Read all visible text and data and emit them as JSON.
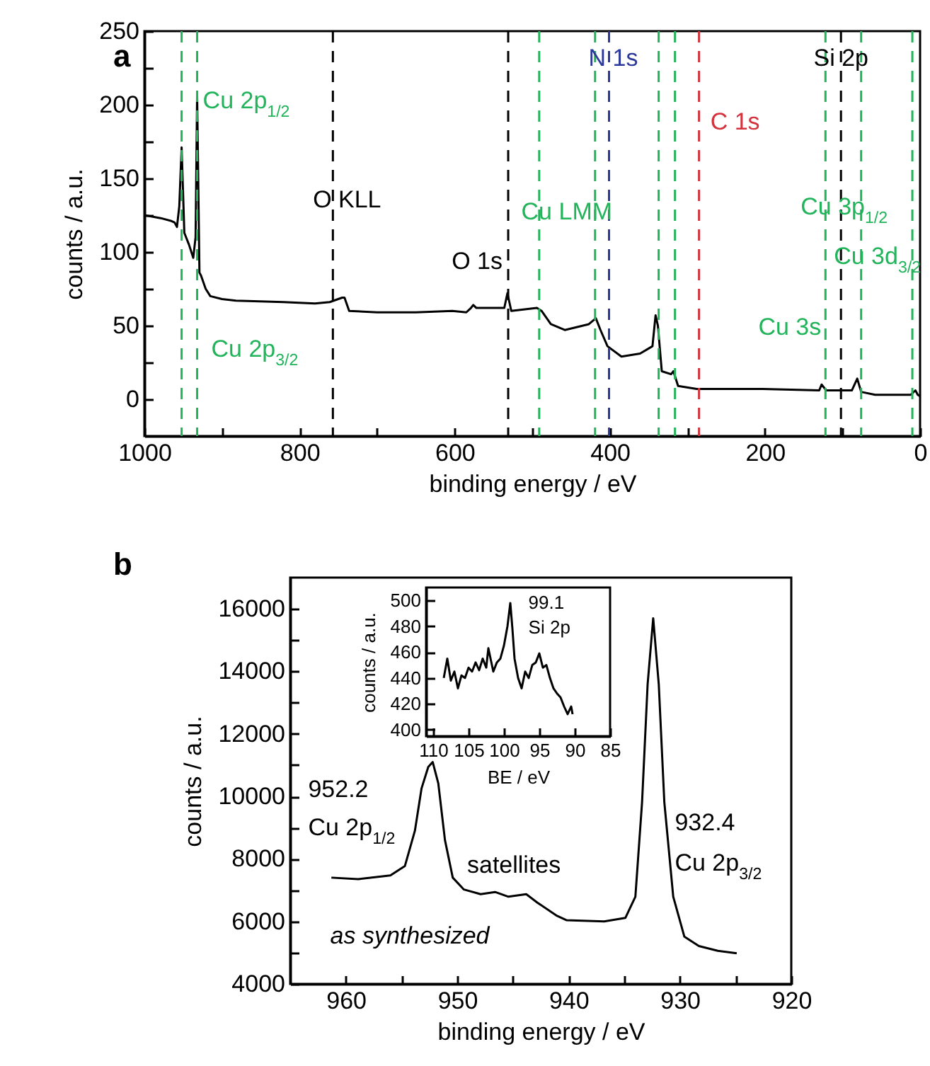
{
  "chart_data": [
    {
      "type": "line",
      "title": "a",
      "xlabel": "binding energy / eV",
      "ylabel": "counts / a.u.",
      "x": [
        1000,
        990,
        979,
        965,
        961,
        958,
        955,
        952,
        948.5,
        942.5,
        937,
        934,
        932,
        929,
        927,
        921,
        915,
        900,
        882,
        821,
        780,
        761,
        745,
        742,
        736,
        700,
        650,
        603,
        585,
        579,
        576,
        572,
        536,
        532,
        527,
        494,
        488,
        476,
        458,
        427,
        418,
        412,
        403,
        385,
        361,
        345,
        341,
        338,
        333,
        321,
        318,
        312,
        288,
        239,
        203,
        130,
        127,
        121,
        88,
        81,
        76,
        58,
        12,
        6,
        3,
        0
      ],
      "series": [
        {
          "color": "#000000",
          "values": [
            125,
            124,
            123,
            121,
            120,
            117,
            131,
            171,
            113,
            105,
            96,
            110,
            206,
            86,
            84,
            75,
            70,
            68,
            67,
            66,
            65,
            66,
            69,
            69,
            60,
            59,
            59,
            60,
            59,
            62,
            64,
            62,
            62,
            72,
            60,
            62,
            60,
            51,
            47,
            51,
            55,
            47,
            36,
            29,
            31,
            36,
            57,
            50,
            19,
            17,
            19,
            9,
            7,
            7,
            7,
            6,
            10,
            6,
            6,
            14,
            5,
            3,
            3,
            6,
            3,
            2
          ]
        }
      ],
      "xlim": [
        1000,
        0
      ],
      "ylim": [
        -25,
        250
      ],
      "xticks": [
        1000,
        {
          "value": 900,
          "label": null
        },
        800,
        {
          "value": 700,
          "label": null
        },
        600,
        {
          "value": 500,
          "label": null
        },
        400,
        {
          "value": 300,
          "label": null
        },
        200,
        {
          "value": 100,
          "label": null
        },
        0
      ],
      "yticks": [
        0,
        {
          "value": 25,
          "label": null
        },
        50,
        {
          "value": 75,
          "label": null
        },
        100,
        {
          "value": 125,
          "label": null
        },
        150,
        {
          "value": 175,
          "label": null
        },
        200,
        {
          "value": 225,
          "label": null
        },
        250
      ],
      "ref_lines": [
        {
          "axis": "x",
          "value": 952,
          "label": "Cu 2p$_{1/2}$",
          "color": "#22b45a",
          "line_style": "dashed"
        },
        {
          "axis": "x",
          "value": 932,
          "label": "Cu 2p$_{3/2}$",
          "color": "#22b45a",
          "line_style": "dashed"
        },
        {
          "axis": "x",
          "value": 757,
          "label": "O KLL",
          "color": "#000000",
          "line_style": "dashed"
        },
        {
          "axis": "x",
          "value": 531,
          "label": "O 1s",
          "color": "#000000",
          "line_style": "dashed"
        },
        {
          "axis": "x",
          "value": 491,
          "color": "#22b45a",
          "line_style": "dashed"
        },
        {
          "axis": "x",
          "value": 419,
          "label": "Cu LMM",
          "color": "#22b45a",
          "line_style": "dashed"
        },
        {
          "axis": "x",
          "value": 401,
          "label": "N 1s",
          "color": "#2b3a9a",
          "line_style": "dashed"
        },
        {
          "axis": "x",
          "value": 337,
          "color": "#22b45a",
          "line_style": "dashed"
        },
        {
          "axis": "x",
          "value": 316,
          "color": "#22b45a",
          "line_style": "dashed"
        },
        {
          "axis": "x",
          "value": 285,
          "label": "C 1s",
          "color": "#d4323c",
          "line_style": "dashed"
        },
        {
          "axis": "x",
          "value": 122,
          "label": "Cu 3s",
          "color": "#22b45a",
          "line_style": "dashed"
        },
        {
          "axis": "x",
          "value": 102,
          "label": "Si 2p",
          "color": "#000000",
          "line_style": "dashed"
        },
        {
          "axis": "x",
          "value": 76,
          "label": "Cu 3p$_{1/2}$",
          "color": "#22b45a",
          "line_style": "dashed"
        },
        {
          "axis": "x",
          "value": 10,
          "label": "Cu 3d$_{3/2}$",
          "color": "#22b45a",
          "line_style": "dashed"
        }
      ]
    },
    {
      "type": "line",
      "title": "b",
      "xlabel": "binding energy / eV",
      "ylabel": "counts / a.u.",
      "x": [
        961.3,
        958.9,
        956,
        954.7,
        953.8,
        953.2,
        952.6,
        952.2,
        951.7,
        951.1,
        950.4,
        949.4,
        947.9,
        946.6,
        945.4,
        943.8,
        942.8,
        941.1,
        940.2,
        936.8,
        934.9,
        934,
        933.4,
        932.9,
        932.4,
        931.9,
        931.4,
        930.6,
        929.6,
        928.3,
        926.6,
        924.9
      ],
      "series": [
        {
          "color": "#000000",
          "values": [
            7400,
            7350,
            7470,
            7770,
            8900,
            10260,
            10940,
            11100,
            10420,
            8600,
            7400,
            7020,
            6870,
            6940,
            6790,
            6870,
            6600,
            6190,
            6040,
            6000,
            6110,
            6790,
            9810,
            13590,
            15700,
            13590,
            9810,
            6790,
            5510,
            5210,
            5060,
            4980
          ]
        }
      ],
      "xlim": [
        965,
        920
      ],
      "ylim": [
        4000,
        17000
      ],
      "xticks": [
        960,
        {
          "value": 955,
          "label": null
        },
        950,
        {
          "value": 945,
          "label": null
        },
        940,
        {
          "value": 935,
          "label": null
        },
        930,
        {
          "value": 925,
          "label": null
        },
        920
      ],
      "yticks": [
        4000,
        {
          "value": 5000,
          "label": null
        },
        6000,
        {
          "value": 7000,
          "label": null
        },
        8000,
        {
          "value": 9000,
          "label": null
        },
        10000,
        {
          "value": 11000,
          "label": null
        },
        12000,
        {
          "value": 13000,
          "label": null
        },
        14000,
        {
          "value": 15000,
          "label": null
        },
        16000
      ],
      "annotations": [
        "952.2",
        "Cu 2p$_{1/2}$",
        "satellites",
        "932.4",
        "Cu 2p$_{3/2}$",
        "as synthesized"
      ]
    },
    {
      "type": "line",
      "xlabel": "BE / eV",
      "ylabel": "counts / a.u.",
      "x": [
        108.5,
        108,
        107.5,
        107,
        106.5,
        106,
        105.5,
        105,
        104.5,
        104,
        103.5,
        103,
        102.5,
        102.2,
        101.5,
        101,
        100.5,
        100,
        99.5,
        99.1,
        98.8,
        98.5,
        98,
        97.5,
        97,
        96.5,
        96,
        95.5,
        95,
        94.5,
        94,
        93.5,
        93,
        92.5,
        92,
        91.5,
        91,
        90.5,
        90.3
      ],
      "series": [
        {
          "color": "#000000",
          "values": [
            440,
            455,
            438,
            445,
            432,
            442,
            440,
            448,
            445,
            452,
            446,
            455,
            448,
            463,
            445,
            452,
            455,
            465,
            480,
            498,
            478,
            455,
            440,
            432,
            445,
            440,
            450,
            452,
            459,
            448,
            450,
            440,
            432,
            428,
            425,
            418,
            412,
            418,
            412
          ]
        }
      ],
      "xlim": [
        111,
        85
      ],
      "ylim": [
        395,
        510
      ],
      "xticks": [
        110,
        105,
        100,
        95,
        90,
        85
      ],
      "yticks": [
        400,
        420,
        440,
        460,
        480,
        500
      ],
      "annotations": [
        "99.1",
        "Si 2p"
      ]
    }
  ]
}
